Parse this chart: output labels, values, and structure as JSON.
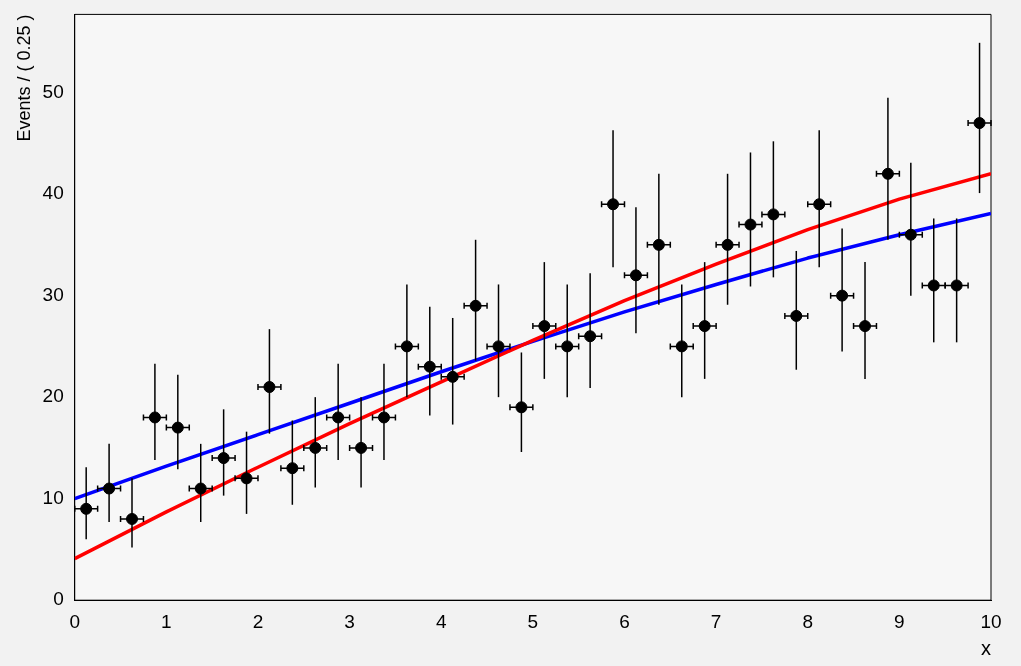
{
  "chart_data": {
    "type": "scatter",
    "xlabel": "x",
    "ylabel": "Events / ( 0.25 )",
    "xlim": [
      0,
      10
    ],
    "ylim": [
      0,
      57.7
    ],
    "xticks": [
      0,
      1,
      2,
      3,
      4,
      5,
      6,
      7,
      8,
      9,
      10
    ],
    "yticks": [
      0,
      10,
      20,
      30,
      40,
      50
    ],
    "grid": false,
    "legend": false,
    "series": [
      {
        "marker": "circle",
        "color": "#000000",
        "x": [
          0.125,
          0.375,
          0.625,
          0.875,
          1.125,
          1.375,
          1.625,
          1.875,
          2.125,
          2.375,
          2.625,
          2.875,
          3.125,
          3.375,
          3.625,
          3.875,
          4.125,
          4.375,
          4.625,
          4.875,
          5.125,
          5.375,
          5.625,
          5.875,
          6.125,
          6.375,
          6.625,
          6.875,
          7.125,
          7.375,
          7.625,
          7.875,
          8.125,
          8.375,
          8.625,
          8.875,
          9.125,
          9.375,
          9.625,
          9.875
        ],
        "values": [
          9,
          11,
          8,
          18,
          17,
          11,
          14,
          12,
          21,
          13,
          15,
          18,
          15,
          18,
          25,
          23,
          22,
          29,
          25,
          19,
          27,
          25,
          26,
          39,
          32,
          35,
          25,
          27,
          35,
          37,
          38,
          28,
          39,
          30,
          27,
          42,
          36,
          31,
          31,
          47
        ],
        "errors": [
          [
            6.0,
            13.1
          ],
          [
            7.7,
            15.4
          ],
          [
            5.2,
            12.0
          ],
          [
            13.8,
            23.3
          ],
          [
            12.9,
            22.2
          ],
          [
            7.7,
            15.4
          ],
          [
            10.3,
            18.8
          ],
          [
            8.5,
            16.6
          ],
          [
            16.4,
            26.7
          ],
          [
            9.4,
            17.7
          ],
          [
            11.1,
            20.0
          ],
          [
            13.8,
            23.3
          ],
          [
            11.1,
            20.0
          ],
          [
            13.8,
            23.3
          ],
          [
            20.0,
            31.1
          ],
          [
            18.2,
            28.9
          ],
          [
            17.3,
            27.8
          ],
          [
            23.6,
            35.5
          ],
          [
            20.0,
            31.1
          ],
          [
            14.6,
            24.4
          ],
          [
            21.8,
            33.3
          ],
          [
            20.0,
            31.1
          ],
          [
            20.9,
            32.2
          ],
          [
            32.8,
            46.3
          ],
          [
            26.3,
            38.7
          ],
          [
            29.1,
            42.0
          ],
          [
            20.0,
            31.1
          ],
          [
            21.8,
            33.3
          ],
          [
            29.1,
            42.0
          ],
          [
            30.9,
            44.1
          ],
          [
            31.8,
            45.2
          ],
          [
            22.7,
            34.4
          ],
          [
            32.8,
            46.3
          ],
          [
            24.5,
            36.6
          ],
          [
            21.8,
            33.3
          ],
          [
            35.5,
            49.5
          ],
          [
            30.0,
            43.1
          ],
          [
            25.4,
            37.6
          ],
          [
            25.4,
            37.6
          ],
          [
            40.1,
            54.9
          ]
        ],
        "xerrors": [
          0.125,
          0.125,
          0.125,
          0.125,
          0.125,
          0.125,
          0.125,
          0.125,
          0.125,
          0.125,
          0.125,
          0.125,
          0.125,
          0.125,
          0.125,
          0.125,
          0.125,
          0.125,
          0.125,
          0.125,
          0.125,
          0.125,
          0.125,
          0.125,
          0.125,
          0.125,
          0.125,
          0.125,
          0.125,
          0.125,
          0.125,
          0.125,
          0.125,
          0.125,
          0.125,
          0.125,
          0.125,
          0.125,
          0.125,
          0.125
        ]
      },
      {
        "type": "line",
        "marker": "none",
        "color": "#ff0000",
        "x": [
          0,
          1,
          2,
          3,
          4,
          5,
          6,
          7,
          8,
          9,
          10
        ],
        "values": [
          4.1,
          8.7,
          13.1,
          17.4,
          21.5,
          25.6,
          29.5,
          33.1,
          36.5,
          39.5,
          42
        ]
      },
      {
        "type": "line",
        "marker": "none",
        "color": "#0000ff",
        "x": [
          0,
          1,
          2,
          3,
          4,
          5,
          6,
          7,
          8,
          9,
          10
        ],
        "values": [
          10,
          13.2,
          16.3,
          19.4,
          22.5,
          25.5,
          28.4,
          31.1,
          33.7,
          36,
          38.1
        ]
      }
    ]
  }
}
